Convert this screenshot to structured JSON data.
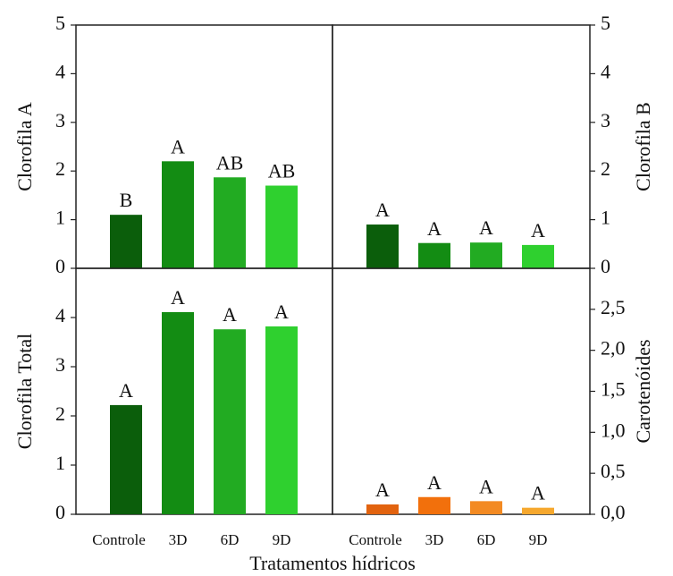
{
  "x_axis_title": "Tratamentos hídricos",
  "chart_data": [
    {
      "type": "bar",
      "ylabel": "Clorofila A",
      "axis_side": "left",
      "values": [
        1.1,
        2.2,
        1.87,
        1.7
      ],
      "annotations": [
        "B",
        "A",
        "AB",
        "AB"
      ],
      "colors": [
        "#0b5e0b",
        "#138c13",
        "#22ab22",
        "#2fd02f"
      ],
      "ylim": [
        0,
        5
      ],
      "yticks": [
        0,
        1,
        2,
        3,
        4,
        5
      ]
    },
    {
      "type": "bar",
      "ylabel": "Clorofila B",
      "axis_side": "right",
      "values": [
        0.9,
        0.52,
        0.53,
        0.48
      ],
      "annotations": [
        "A",
        "A",
        "A",
        "A"
      ],
      "colors": [
        "#0b5e0b",
        "#138c13",
        "#22ab22",
        "#2fd02f"
      ],
      "ylim": [
        0,
        5
      ],
      "yticks": [
        0,
        1,
        2,
        3,
        4,
        5
      ]
    },
    {
      "type": "bar",
      "ylabel": "Clorofila Total",
      "axis_side": "left",
      "categories": [
        "Controle",
        "3D",
        "6D",
        "9D"
      ],
      "values": [
        2.22,
        4.11,
        3.76,
        3.82
      ],
      "annotations": [
        "A",
        "A",
        "A",
        "A"
      ],
      "colors": [
        "#0b5e0b",
        "#138c13",
        "#22ab22",
        "#2fd02f"
      ],
      "ylim": [
        0,
        5
      ],
      "yticks": [
        0,
        1,
        2,
        3,
        4
      ]
    },
    {
      "type": "bar",
      "ylabel": "Carotenóides",
      "axis_side": "right",
      "categories": [
        "Controle",
        "3D",
        "6D",
        "9D"
      ],
      "values": [
        0.12,
        0.21,
        0.16,
        0.08
      ],
      "annotations": [
        "A",
        "A",
        "A",
        "A"
      ],
      "colors": [
        "#e2630f",
        "#f2700c",
        "#f38a22",
        "#f6a82e"
      ],
      "ylim": [
        0,
        3
      ],
      "yticks": [
        {
          "value": 0,
          "label": "0,0"
        },
        {
          "value": 0.5,
          "label": "0,5"
        },
        {
          "value": 1,
          "label": "1,0"
        },
        {
          "value": 1.5,
          "label": "1,5"
        },
        {
          "value": 2,
          "label": "2,0"
        },
        {
          "value": 2.5,
          "label": "2,5"
        }
      ]
    }
  ]
}
